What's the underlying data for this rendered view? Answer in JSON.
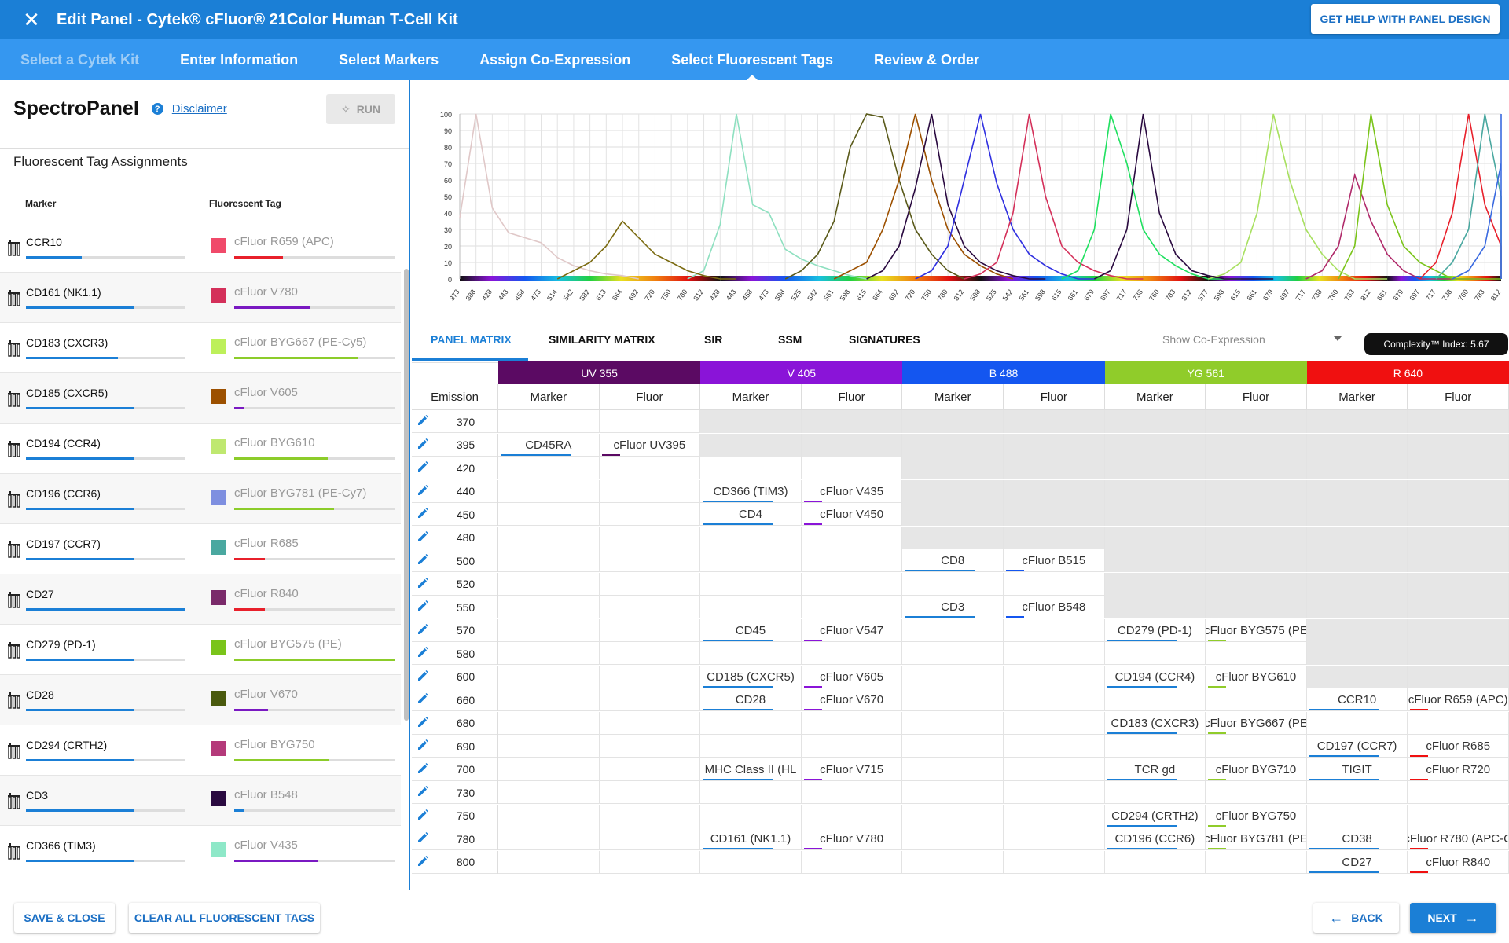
{
  "header": {
    "title": "Edit Panel - Cytek® cFluor® 21Color Human T-Cell Kit",
    "help_button": "GET HELP WITH PANEL DESIGN"
  },
  "steps": [
    {
      "label": "Select a Cytek Kit",
      "state": "disabled"
    },
    {
      "label": "Enter Information",
      "state": "normal"
    },
    {
      "label": "Select Markers",
      "state": "normal"
    },
    {
      "label": "Assign Co-Expression",
      "state": "normal"
    },
    {
      "label": "Select Fluorescent Tags",
      "state": "active"
    },
    {
      "label": "Review & Order",
      "state": "normal"
    }
  ],
  "left_panel": {
    "title": "SpectroPanel",
    "disclaimer": "Disclaimer",
    "run_button": "RUN",
    "section_title": "Fluorescent Tag Assignments",
    "col_marker": "Marker",
    "col_tag": "Fluorescent Tag",
    "rows": [
      {
        "marker": "CCR10",
        "tag": "cFluor R659 (APC)",
        "swatch": "#f04a6a",
        "marker_level": 0.35,
        "tag_level": 0.3,
        "tag_color": "#e8202b"
      },
      {
        "marker": "CD161 (NK1.1)",
        "tag": "cFluor V780",
        "swatch": "#d4305a",
        "marker_level": 0.68,
        "tag_level": 0.47,
        "tag_color": "#7a19c2"
      },
      {
        "marker": "CD183 (CXCR3)",
        "tag": "cFluor BYG667 (PE-Cy5)",
        "swatch": "#bdf05a",
        "marker_level": 0.58,
        "tag_level": 0.77,
        "tag_color": "#8ccc2a"
      },
      {
        "marker": "CD185 (CXCR5)",
        "tag": "cFluor V605",
        "swatch": "#9c5000",
        "marker_level": 0.68,
        "tag_level": 0.06,
        "tag_color": "#7a19c2"
      },
      {
        "marker": "CD194 (CCR4)",
        "tag": "cFluor BYG610",
        "swatch": "#bfe870",
        "marker_level": 0.68,
        "tag_level": 0.58,
        "tag_color": "#8ccc2a"
      },
      {
        "marker": "CD196 (CCR6)",
        "tag": "cFluor BYG781 (PE-Cy7)",
        "swatch": "#7e8fe0",
        "marker_level": 0.68,
        "tag_level": 0.62,
        "tag_color": "#8ccc2a"
      },
      {
        "marker": "CD197 (CCR7)",
        "tag": "cFluor R685",
        "swatch": "#4aa8a0",
        "marker_level": 0.68,
        "tag_level": 0.19,
        "tag_color": "#e8202b"
      },
      {
        "marker": "CD27",
        "tag": "cFluor R840",
        "swatch": "#7a2a6a",
        "marker_level": 1.0,
        "tag_level": 0.19,
        "tag_color": "#e8202b"
      },
      {
        "marker": "CD279 (PD-1)",
        "tag": "cFluor BYG575 (PE)",
        "swatch": "#7ac41a",
        "marker_level": 0.68,
        "tag_level": 1.0,
        "tag_color": "#8ccc2a"
      },
      {
        "marker": "CD28",
        "tag": "cFluor V670",
        "swatch": "#4a5a0e",
        "marker_level": 0.68,
        "tag_level": 0.21,
        "tag_color": "#7a19c2"
      },
      {
        "marker": "CD294 (CRTH2)",
        "tag": "cFluor BYG750",
        "swatch": "#b43a7a",
        "marker_level": 0.68,
        "tag_level": 0.59,
        "tag_color": "#8ccc2a"
      },
      {
        "marker": "CD3",
        "tag": "cFluor B548",
        "swatch": "#2a0a40",
        "marker_level": 0.68,
        "tag_level": 0.06,
        "tag_color": "#1b7fd6"
      },
      {
        "marker": "CD366 (TIM3)",
        "tag": "cFluor V435",
        "swatch": "#8ee8c8",
        "marker_level": 0.68,
        "tag_level": 0.52,
        "tag_color": "#7a19c2"
      }
    ]
  },
  "chart_data": {
    "type": "line",
    "ylim": [
      0,
      100
    ],
    "yticks": [
      0,
      10,
      20,
      30,
      40,
      50,
      60,
      70,
      80,
      90,
      100
    ],
    "xticks": [
      "373",
      "388",
      "428",
      "443",
      "458",
      "473",
      "514",
      "542",
      "582",
      "613",
      "664",
      "692",
      "720",
      "750",
      "780",
      "812",
      "428",
      "443",
      "458",
      "473",
      "508",
      "525",
      "542",
      "561",
      "598",
      "615",
      "664",
      "692",
      "720",
      "750",
      "780",
      "812",
      "508",
      "525",
      "542",
      "561",
      "598",
      "615",
      "661",
      "679",
      "697",
      "717",
      "738",
      "760",
      "783",
      "812",
      "577",
      "598",
      "615",
      "661",
      "679",
      "697",
      "717",
      "738",
      "760",
      "783",
      "812",
      "661",
      "679",
      "697",
      "717",
      "738",
      "760",
      "783",
      "812"
    ],
    "grid": true,
    "legend": "none",
    "series": [
      {
        "color": "#e0c8c8",
        "peak": 1,
        "values": [
          37,
          100,
          43,
          28,
          25,
          22,
          13,
          8,
          5,
          3,
          2,
          0
        ]
      },
      {
        "color": "#8ee0c0",
        "peak": 17,
        "values": [
          0,
          5,
          33,
          100,
          45,
          40,
          18,
          12,
          8,
          5,
          2,
          0
        ]
      },
      {
        "color": "#7a6a10",
        "peak": 9,
        "values": [
          0,
          5,
          10,
          20,
          35,
          25,
          15,
          10,
          5,
          2,
          0,
          0
        ]
      },
      {
        "color": "#5a5a1a",
        "peak": 23,
        "values": [
          0,
          5,
          15,
          35,
          80,
          100,
          98,
          60,
          30,
          15,
          5,
          0
        ]
      },
      {
        "color": "#9c5000",
        "peak": 26,
        "values": [
          0,
          5,
          10,
          30,
          60,
          100,
          60,
          30,
          15,
          8,
          3,
          0
        ]
      },
      {
        "color": "#2a0a40",
        "peak": 28,
        "values": [
          0,
          5,
          20,
          55,
          100,
          45,
          20,
          10,
          5,
          2,
          0,
          0
        ]
      },
      {
        "color": "#3030e0",
        "peak": 31,
        "values": [
          0,
          5,
          20,
          60,
          100,
          58,
          30,
          15,
          8,
          3,
          0,
          0
        ]
      },
      {
        "color": "#d4305a",
        "peak": 34,
        "values": [
          0,
          3,
          10,
          40,
          100,
          50,
          20,
          10,
          5,
          2,
          0,
          0
        ]
      },
      {
        "color": "#20e060",
        "peak": 40,
        "values": [
          0,
          5,
          30,
          100,
          70,
          30,
          15,
          8,
          3,
          0,
          0,
          0
        ]
      },
      {
        "color": "#2a0a40",
        "peak": 42,
        "values": [
          0,
          5,
          30,
          100,
          40,
          15,
          5,
          2,
          0,
          0,
          0,
          0
        ]
      },
      {
        "color": "#a8e060",
        "peak": 49,
        "values": [
          0,
          3,
          10,
          40,
          100,
          60,
          30,
          15,
          5,
          0,
          0,
          0
        ]
      },
      {
        "color": "#b02a6a",
        "peak": 55,
        "values": [
          0,
          5,
          20,
          63,
          35,
          15,
          5,
          0,
          0,
          0,
          0,
          0
        ]
      },
      {
        "color": "#7ac41a",
        "peak": 57,
        "values": [
          0,
          20,
          100,
          45,
          20,
          10,
          5,
          0,
          0,
          0,
          0,
          0
        ]
      },
      {
        "color": "#e8202b",
        "peak": 62,
        "values": [
          0,
          10,
          40,
          100,
          45,
          20,
          10,
          5,
          0,
          0,
          0,
          0
        ]
      },
      {
        "color": "#4aa8a0",
        "peak": 63,
        "values": [
          0,
          10,
          30,
          100,
          50,
          20,
          10,
          5,
          0,
          0,
          0,
          0
        ]
      },
      {
        "color": "#3a6ae0",
        "peak": 64,
        "values": [
          0,
          5,
          20,
          70,
          100,
          30,
          15,
          5,
          0,
          0,
          0,
          0
        ]
      }
    ]
  },
  "tabs": [
    "PANEL MATRIX",
    "SIMILARITY MATRIX",
    "SIR",
    "SSM",
    "SIGNATURES"
  ],
  "coexpression": {
    "placeholder": "Show Co-Expression"
  },
  "complexity": "Complexity™ Index: 5.67",
  "matrix": {
    "emission_label": "Emission",
    "sub_marker": "Marker",
    "sub_fluor": "Fluor",
    "lasers": [
      {
        "name": "UV 355",
        "color": "#5b0a63"
      },
      {
        "name": "V 405",
        "color": "#8a14d8"
      },
      {
        "name": "B 488",
        "color": "#1456f0"
      },
      {
        "name": "YG 561",
        "color": "#90cc2a"
      },
      {
        "name": "R 640",
        "color": "#f01010"
      }
    ],
    "rows": [
      {
        "em": "370",
        "grey": [
          false,
          false,
          true,
          true,
          true,
          true,
          true,
          true,
          true,
          true
        ],
        "cells": {}
      },
      {
        "em": "395",
        "grey": [
          false,
          false,
          true,
          true,
          true,
          true,
          true,
          true,
          true,
          true
        ],
        "cells": {
          "0": "CD45RA",
          "1": "cFluor UV395"
        }
      },
      {
        "em": "420",
        "grey": [
          false,
          false,
          false,
          false,
          true,
          true,
          true,
          true,
          true,
          true
        ],
        "cells": {}
      },
      {
        "em": "440",
        "grey": [
          false,
          false,
          false,
          false,
          true,
          true,
          true,
          true,
          true,
          true
        ],
        "cells": {
          "2": "CD366 (TIM3)",
          "3": "cFluor V435"
        }
      },
      {
        "em": "450",
        "grey": [
          false,
          false,
          false,
          false,
          true,
          true,
          true,
          true,
          true,
          true
        ],
        "cells": {
          "2": "CD4",
          "3": "cFluor V450"
        }
      },
      {
        "em": "480",
        "grey": [
          false,
          false,
          false,
          false,
          true,
          true,
          true,
          true,
          true,
          true
        ],
        "cells": {}
      },
      {
        "em": "500",
        "grey": [
          false,
          false,
          false,
          false,
          false,
          false,
          true,
          true,
          true,
          true
        ],
        "cells": {
          "4": "CD8",
          "5": "cFluor B515"
        }
      },
      {
        "em": "520",
        "grey": [
          false,
          false,
          false,
          false,
          false,
          false,
          true,
          true,
          true,
          true
        ],
        "cells": {}
      },
      {
        "em": "550",
        "grey": [
          false,
          false,
          false,
          false,
          false,
          false,
          true,
          true,
          true,
          true
        ],
        "cells": {
          "4": "CD3",
          "5": "cFluor B548"
        }
      },
      {
        "em": "570",
        "grey": [
          false,
          false,
          false,
          false,
          false,
          false,
          false,
          false,
          true,
          true
        ],
        "cells": {
          "2": "CD45",
          "3": "cFluor V547",
          "6": "CD279 (PD-1)",
          "7": "cFluor BYG575 (PE"
        }
      },
      {
        "em": "580",
        "grey": [
          false,
          false,
          false,
          false,
          false,
          false,
          false,
          false,
          true,
          true
        ],
        "cells": {}
      },
      {
        "em": "600",
        "grey": [
          false,
          false,
          false,
          false,
          false,
          false,
          false,
          false,
          true,
          true
        ],
        "cells": {
          "2": "CD185 (CXCR5)",
          "3": "cFluor V605",
          "6": "CD194 (CCR4)",
          "7": "cFluor BYG610"
        }
      },
      {
        "em": "660",
        "grey": [
          false,
          false,
          false,
          false,
          false,
          false,
          false,
          false,
          false,
          false
        ],
        "cells": {
          "2": "CD28",
          "3": "cFluor V670",
          "8": "CCR10",
          "9": "cFluor R659 (APC)"
        }
      },
      {
        "em": "680",
        "grey": [
          false,
          false,
          false,
          false,
          false,
          false,
          false,
          false,
          false,
          false
        ],
        "cells": {
          "6": "CD183 (CXCR3)",
          "7": "cFluor BYG667 (PE"
        }
      },
      {
        "em": "690",
        "grey": [
          false,
          false,
          false,
          false,
          false,
          false,
          false,
          false,
          false,
          false
        ],
        "cells": {
          "8": "CD197 (CCR7)",
          "9": "cFluor R685"
        }
      },
      {
        "em": "700",
        "grey": [
          false,
          false,
          false,
          false,
          false,
          false,
          false,
          false,
          false,
          false
        ],
        "cells": {
          "2": "MHC Class II (HL",
          "3": "cFluor V715",
          "6": "TCR gd",
          "7": "cFluor BYG710",
          "8": "TIGIT",
          "9": "cFluor R720"
        }
      },
      {
        "em": "730",
        "grey": [
          false,
          false,
          false,
          false,
          false,
          false,
          false,
          false,
          false,
          false
        ],
        "cells": {}
      },
      {
        "em": "750",
        "grey": [
          false,
          false,
          false,
          false,
          false,
          false,
          false,
          false,
          false,
          false
        ],
        "cells": {
          "6": "CD294 (CRTH2)",
          "7": "cFluor BYG750"
        }
      },
      {
        "em": "780",
        "grey": [
          false,
          false,
          false,
          false,
          false,
          false,
          false,
          false,
          false,
          false
        ],
        "cells": {
          "2": "CD161 (NK1.1)",
          "3": "cFluor V780",
          "6": "CD196 (CCR6)",
          "7": "cFluor BYG781 (PE",
          "8": "CD38",
          "9": "cFluor R780 (APC-C"
        }
      },
      {
        "em": "800",
        "grey": [
          false,
          false,
          false,
          false,
          false,
          false,
          false,
          false,
          false,
          false
        ],
        "cells": {
          "8": "CD27",
          "9": "cFluor R840"
        }
      }
    ]
  },
  "footer": {
    "save_close": "SAVE & CLOSE",
    "clear_all": "CLEAR ALL FLUORESCENT TAGS",
    "back": "BACK",
    "next": "NEXT"
  }
}
